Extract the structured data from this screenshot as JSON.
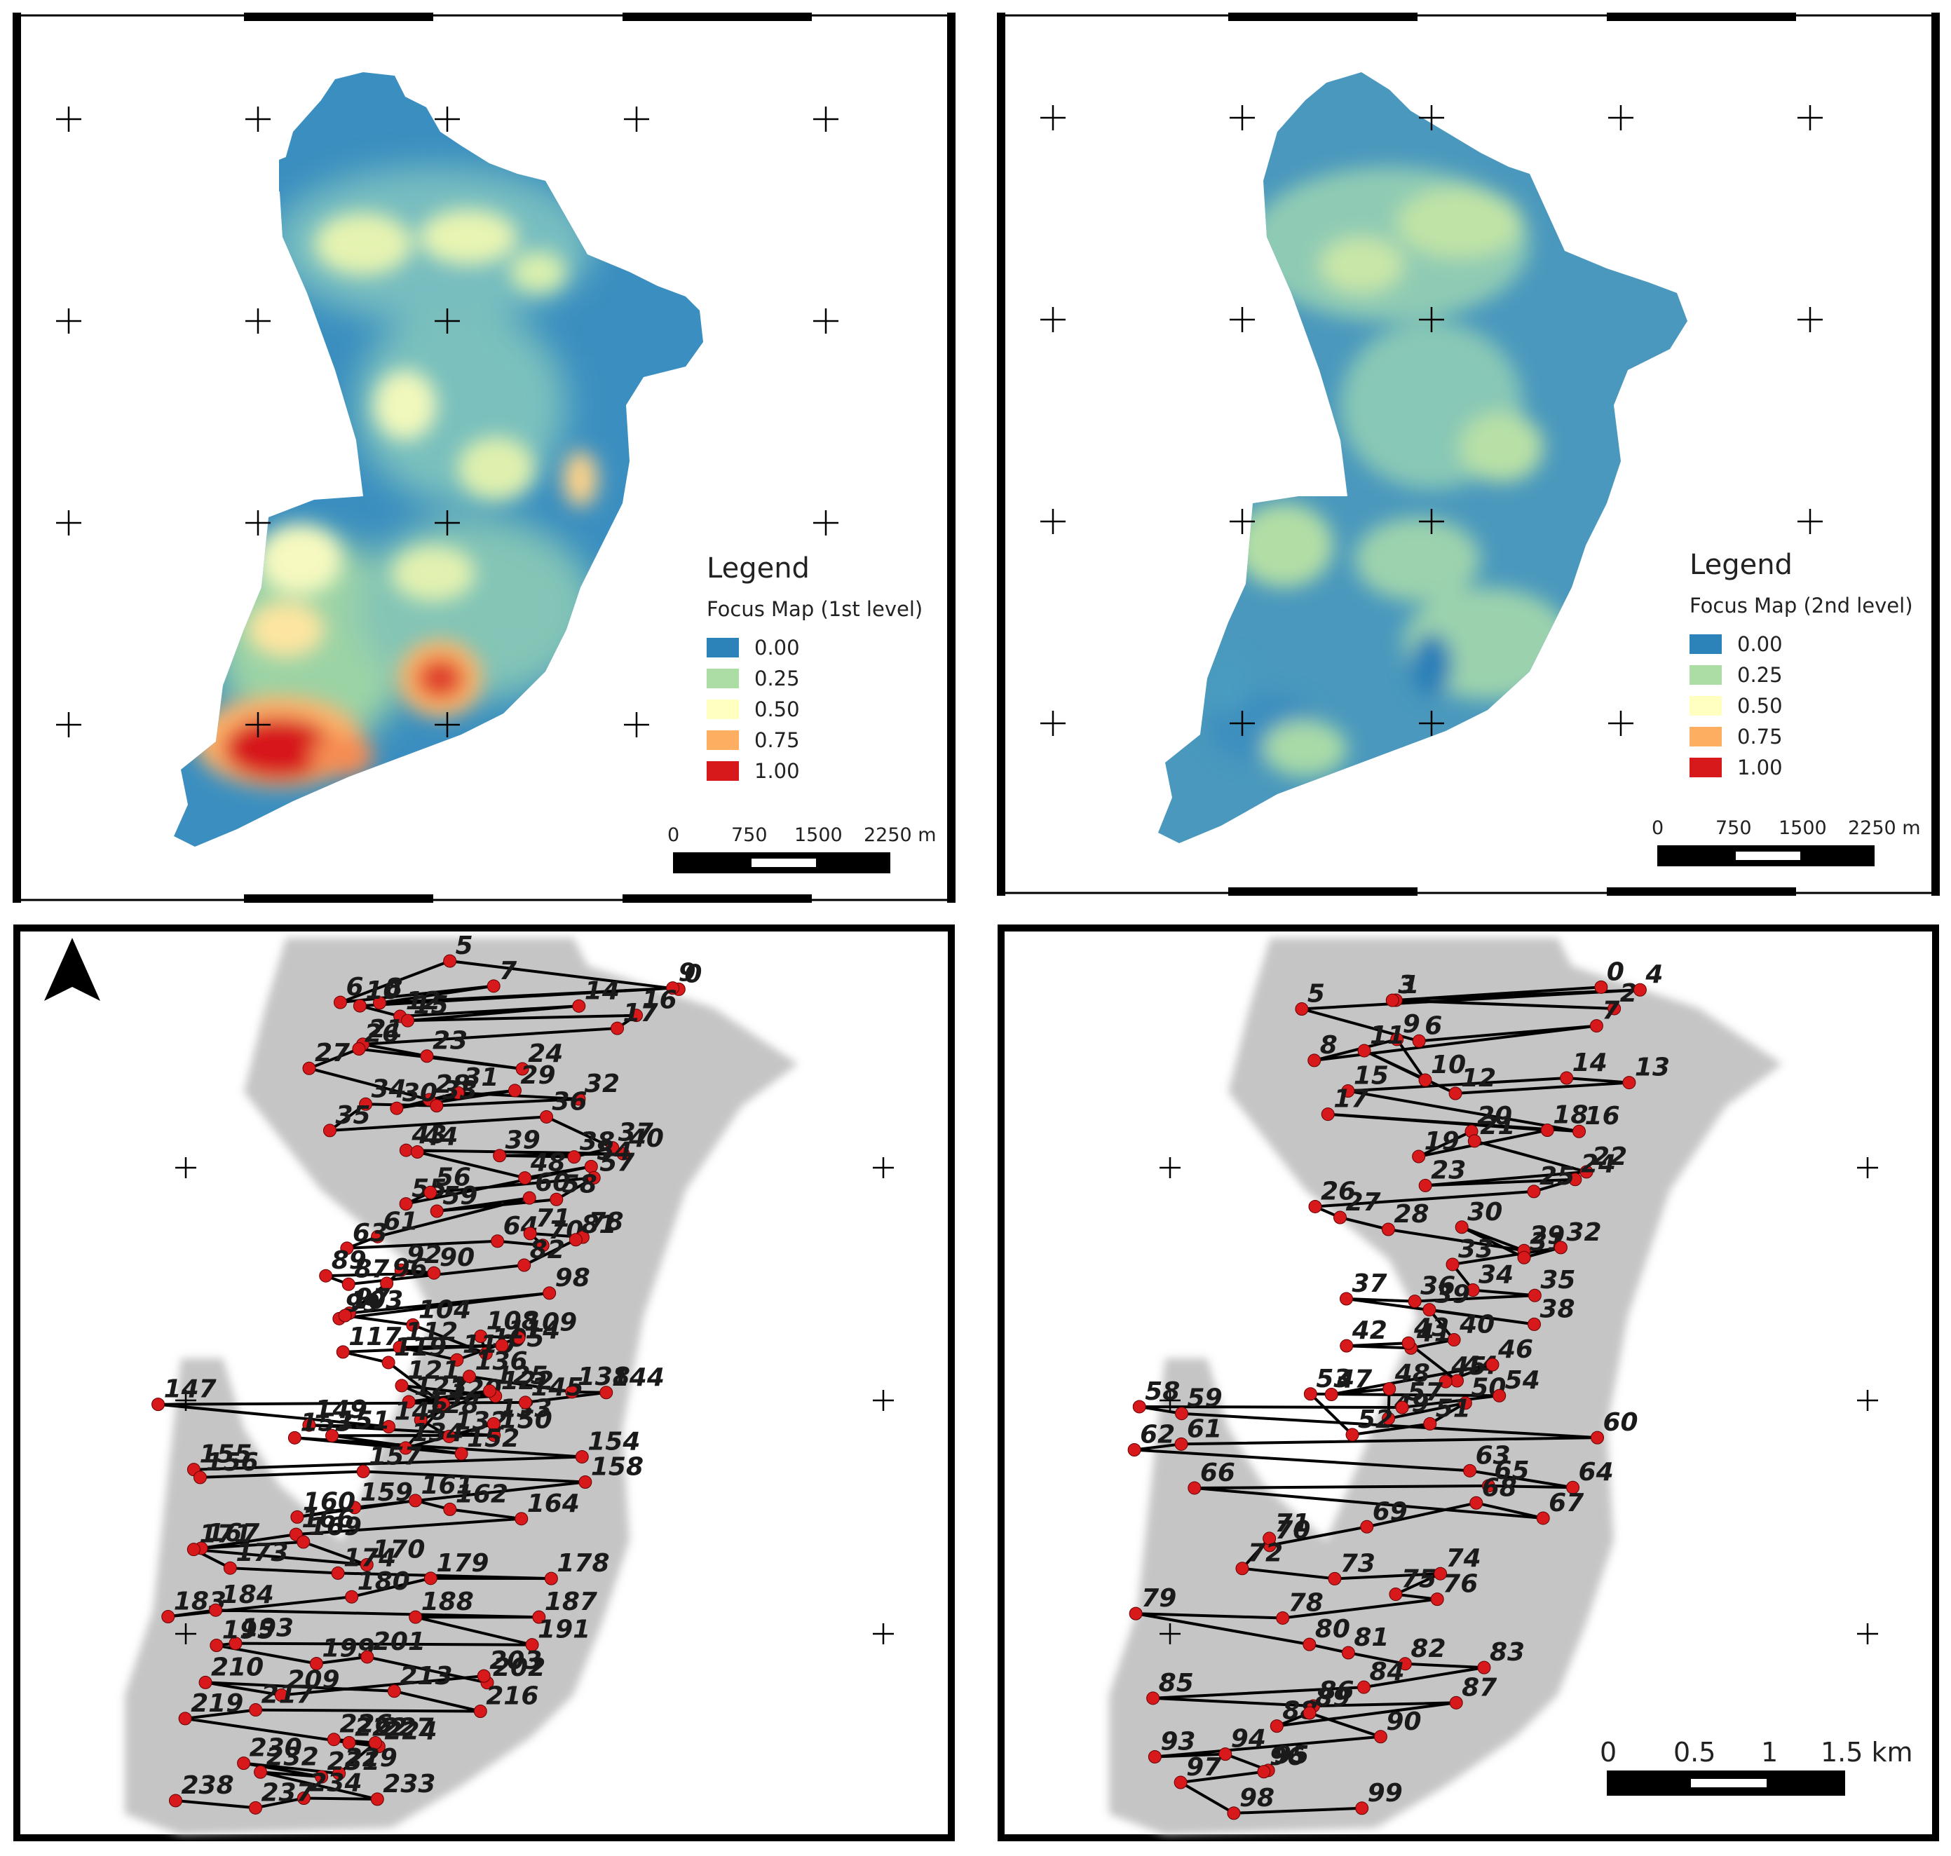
{
  "panels": {
    "top_left": {
      "legend": {
        "title": "Legend",
        "subtitle": "Focus Map (1st level)",
        "items": [
          {
            "label": "0.00",
            "color": "#2b83ba"
          },
          {
            "label": "0.25",
            "color": "#abdda4"
          },
          {
            "label": "0.50",
            "color": "#ffffbf"
          },
          {
            "label": "0.75",
            "color": "#fdae61"
          },
          {
            "label": "1.00",
            "color": "#d7191c"
          }
        ]
      },
      "scale": {
        "ticks": [
          "0",
          "750",
          "1500",
          "2250 m"
        ]
      }
    },
    "top_right": {
      "legend": {
        "title": "Legend",
        "subtitle": "Focus Map (2nd level)",
        "items": [
          {
            "label": "0.00",
            "color": "#2b83ba"
          },
          {
            "label": "0.25",
            "color": "#abdda4"
          },
          {
            "label": "0.50",
            "color": "#ffffbf"
          },
          {
            "label": "0.75",
            "color": "#fdae61"
          },
          {
            "label": "1.00",
            "color": "#d7191c"
          }
        ]
      },
      "scale": {
        "ticks": [
          "0",
          "750",
          "1500",
          "2250 m"
        ]
      }
    },
    "bottom_left": {
      "north_arrow": "north-arrow-icon",
      "stop_color": "#d7191c",
      "stops": [
        "0",
        "5",
        "6",
        "7",
        "8",
        "9",
        "10",
        "12",
        "14",
        "15",
        "16",
        "17",
        "21",
        "23",
        "24",
        "26",
        "27",
        "28",
        "29",
        "30",
        "31",
        "32",
        "33",
        "34",
        "35",
        "36",
        "37",
        "38",
        "39",
        "40",
        "43",
        "44",
        "48",
        "54",
        "55",
        "56",
        "57",
        "58",
        "59",
        "60",
        "61",
        "63",
        "64",
        "70",
        "71",
        "78",
        "81",
        "82",
        "87",
        "89",
        "90",
        "92",
        "96",
        "97",
        "98",
        "99",
        "103",
        "104",
        "105",
        "108",
        "109",
        "110",
        "112",
        "114",
        "117",
        "119",
        "120",
        "121",
        "122",
        "123",
        "125",
        "128",
        "132",
        "133",
        "134",
        "136",
        "138",
        "144",
        "145",
        "147",
        "148",
        "149",
        "150",
        "151",
        "152",
        "153",
        "154",
        "155",
        "156",
        "157",
        "158",
        "159",
        "160",
        "161",
        "162",
        "164",
        "166",
        "167",
        "169",
        "170",
        "171",
        "173",
        "174",
        "178",
        "179",
        "180",
        "183",
        "184",
        "187",
        "188",
        "191",
        "193",
        "195",
        "199",
        "201",
        "202",
        "203",
        "209",
        "210",
        "213",
        "216",
        "217",
        "219",
        "222",
        "224",
        "226",
        "227",
        "229",
        "230",
        "231",
        "232",
        "233",
        "234",
        "237",
        "238"
      ]
    },
    "bottom_right": {
      "stop_color": "#d7191c",
      "stops": [
        "0",
        "1",
        "2",
        "3",
        "4",
        "5",
        "6",
        "7",
        "8",
        "9",
        "10",
        "11",
        "12",
        "13",
        "14",
        "15",
        "16",
        "17",
        "18",
        "19",
        "20",
        "21",
        "22",
        "23",
        "24",
        "25",
        "26",
        "27",
        "28",
        "29",
        "30",
        "31",
        "32",
        "33",
        "34",
        "35",
        "36",
        "37",
        "38",
        "39",
        "40",
        "41",
        "42",
        "43",
        "44",
        "45",
        "46",
        "47",
        "48",
        "49",
        "50",
        "51",
        "52",
        "53",
        "54",
        "57",
        "58",
        "59",
        "60",
        "61",
        "62",
        "63",
        "64",
        "65",
        "66",
        "67",
        "68",
        "69",
        "70",
        "71",
        "72",
        "73",
        "74",
        "75",
        "76",
        "78",
        "79",
        "80",
        "81",
        "82",
        "83",
        "84",
        "85",
        "86",
        "87",
        "88",
        "89",
        "90",
        "93",
        "94",
        "95",
        "96",
        "97",
        "98",
        "99"
      ],
      "scale": {
        "ticks": [
          "0",
          "0.5",
          "1",
          "1.5 km"
        ]
      }
    }
  }
}
